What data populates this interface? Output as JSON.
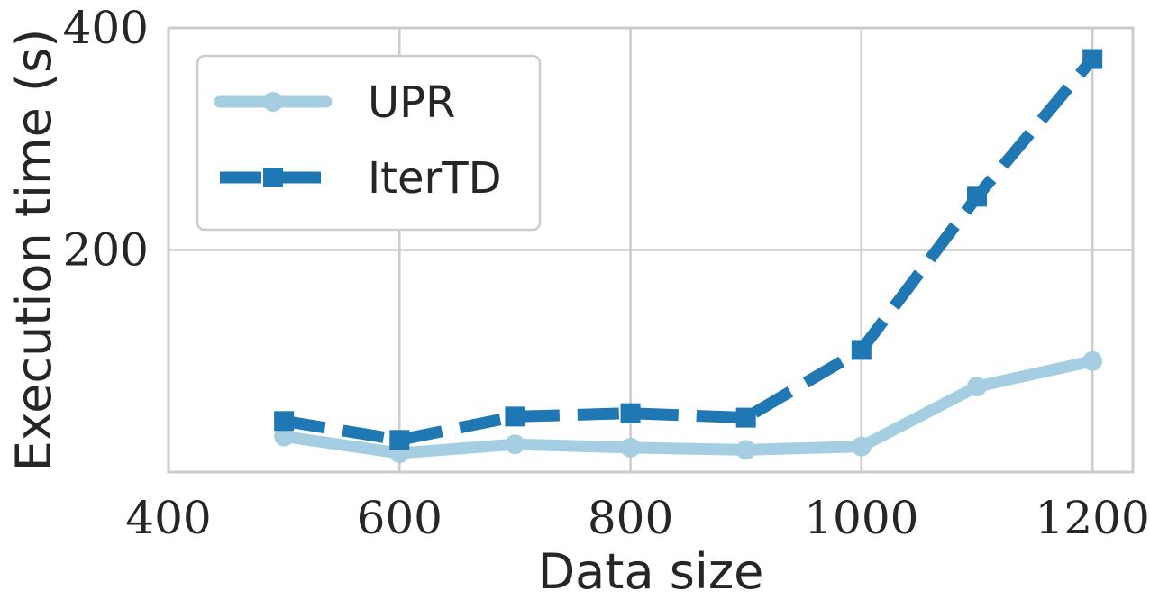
{
  "chart_data": {
    "type": "line",
    "xlabel": "Data size",
    "ylabel": "Execution time (s)",
    "xlim": [
      400,
      1235
    ],
    "ylim": [
      0,
      400
    ],
    "xticks": [
      "400",
      "600",
      "800",
      "1000",
      "1200"
    ],
    "yticks": [
      "200",
      "400"
    ],
    "grid": true,
    "legend_position": "top-left",
    "series": [
      {
        "name": "UPR",
        "color": "#a6cee3",
        "marker": "circle",
        "linestyle": "solid",
        "x": [
          500,
          600,
          700,
          800,
          900,
          1000,
          1100,
          1200
        ],
        "y": [
          32,
          17,
          25,
          22,
          20,
          23,
          77,
          100
        ]
      },
      {
        "name": "IterTD",
        "color": "#1f78b4",
        "marker": "square",
        "linestyle": "dashed",
        "x": [
          500,
          600,
          700,
          800,
          900,
          1000,
          1100,
          1200
        ],
        "y": [
          46,
          29,
          50,
          53,
          49,
          110,
          248,
          372
        ]
      }
    ]
  }
}
